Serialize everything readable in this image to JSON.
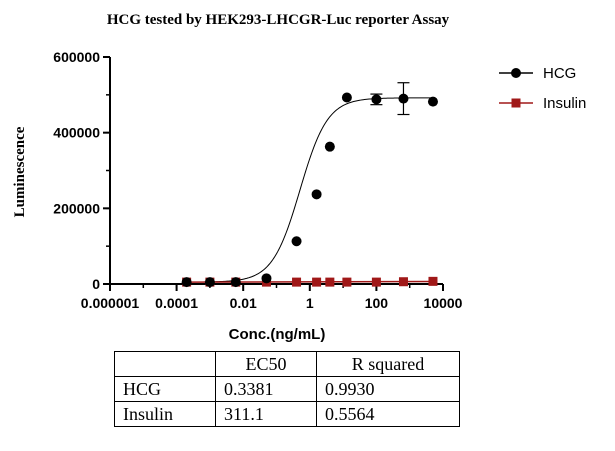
{
  "chart_data": {
    "type": "scatter",
    "title": "HCG tested by HEK293-LHCGR-Luc reporter Assay",
    "xlabel": "Conc.(ng/mL)",
    "ylabel": "Luminescence",
    "xscale": "log",
    "xlim": [
      1e-06,
      10000
    ],
    "ylim": [
      0,
      600000
    ],
    "x_ticks": [
      "0.000001",
      "0.0001",
      "0.01",
      "1",
      "100",
      "10000"
    ],
    "y_ticks": [
      "0",
      "200000",
      "400000",
      "600000"
    ],
    "legend_position": "top-right",
    "series": [
      {
        "name": "HCG",
        "color": "#000000",
        "marker": "circle",
        "fit": "sigmoid",
        "x": [
          0.0002,
          0.001,
          0.006,
          0.05,
          0.4,
          1.6,
          4.0,
          13.0,
          100.0,
          650.0,
          5000.0
        ],
        "y": [
          5000,
          5000,
          5000,
          15000,
          113000,
          237000,
          363000,
          493000,
          488000,
          490000,
          482000
        ],
        "error": [
          0,
          0,
          0,
          0,
          0,
          0,
          0,
          0,
          14000,
          42000,
          0
        ]
      },
      {
        "name": "Insulin",
        "color": "#a01818",
        "marker": "square",
        "fit": "flat",
        "x": [
          0.0002,
          0.001,
          0.006,
          0.05,
          0.4,
          1.6,
          4.0,
          13.0,
          100.0,
          650.0,
          5000.0
        ],
        "y": [
          5000,
          5000,
          5000,
          5000,
          5000,
          5000,
          5000,
          5000,
          5000,
          6000,
          7000
        ]
      }
    ]
  },
  "table": {
    "headers": [
      "",
      "EC50",
      "R squared"
    ],
    "rows": [
      [
        "HCG",
        "0.3381",
        "0.9930"
      ],
      [
        "Insulin",
        "311.1",
        "0.5564"
      ]
    ]
  }
}
